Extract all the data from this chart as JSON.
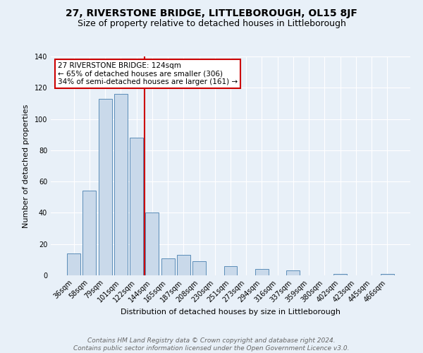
{
  "title": "27, RIVERSTONE BRIDGE, LITTLEBOROUGH, OL15 8JF",
  "subtitle": "Size of property relative to detached houses in Littleborough",
  "xlabel": "Distribution of detached houses by size in Littleborough",
  "ylabel": "Number of detached properties",
  "bar_labels": [
    "36sqm",
    "58sqm",
    "79sqm",
    "101sqm",
    "122sqm",
    "144sqm",
    "165sqm",
    "187sqm",
    "208sqm",
    "230sqm",
    "251sqm",
    "273sqm",
    "294sqm",
    "316sqm",
    "337sqm",
    "359sqm",
    "380sqm",
    "402sqm",
    "423sqm",
    "445sqm",
    "466sqm"
  ],
  "bar_values": [
    14,
    54,
    113,
    116,
    88,
    40,
    11,
    13,
    9,
    0,
    6,
    0,
    4,
    0,
    3,
    0,
    0,
    1,
    0,
    0,
    1
  ],
  "bar_color": "#c9d9ea",
  "bar_edge_color": "#5b8db8",
  "highlight_line_color": "#cc0000",
  "annotation_box_text": "27 RIVERSTONE BRIDGE: 124sqm\n← 65% of detached houses are smaller (306)\n34% of semi-detached houses are larger (161) →",
  "annotation_box_color": "white",
  "annotation_box_edge_color": "#cc0000",
  "ylim": [
    0,
    140
  ],
  "yticks": [
    0,
    20,
    40,
    60,
    80,
    100,
    120,
    140
  ],
  "footer_line1": "Contains HM Land Registry data © Crown copyright and database right 2024.",
  "footer_line2": "Contains public sector information licensed under the Open Government Licence v3.0.",
  "background_color": "#e8f0f8",
  "plot_background_color": "#e8f0f8",
  "grid_color": "#ffffff",
  "title_fontsize": 10,
  "subtitle_fontsize": 9,
  "axis_label_fontsize": 8,
  "tick_fontsize": 7,
  "annotation_fontsize": 7.5,
  "footer_fontsize": 6.5
}
